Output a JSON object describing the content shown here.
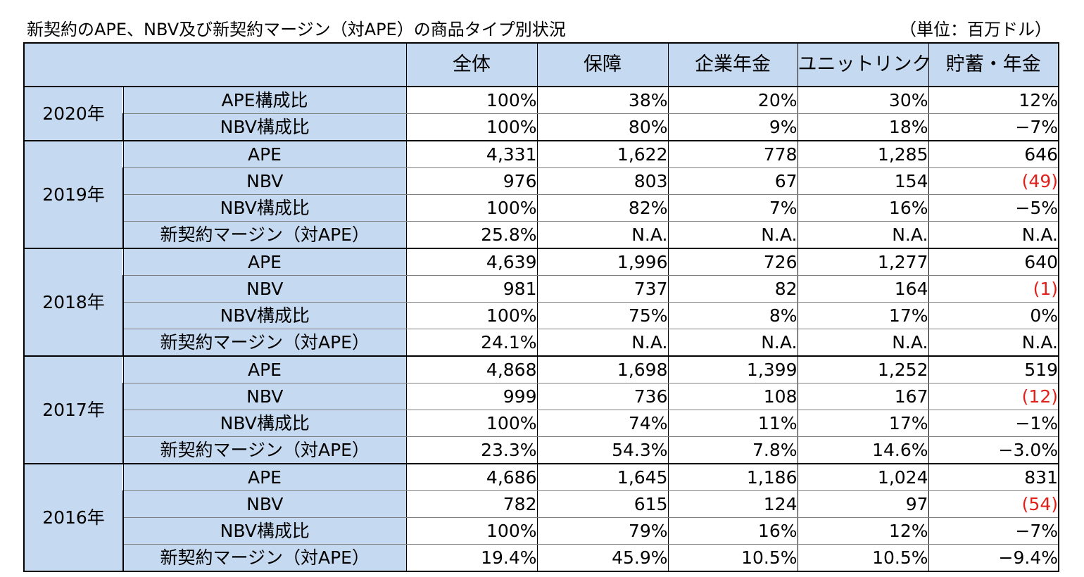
{
  "title": "新契約のAPE、NBV及び新契約マージン（対APE）の商品タイプ別状況",
  "unit": "（単位：百万ドル）",
  "columns": [
    "全体",
    "保障",
    "企業年金",
    "ユニットリンク",
    "貯蓄・年金"
  ],
  "groups": [
    {
      "year": "2020年",
      "rows": [
        {
          "label": "APE構成比",
          "values": [
            "100%",
            "38%",
            "20%",
            "30%",
            "12%"
          ],
          "neg": [
            false,
            false,
            false,
            false,
            false
          ]
        },
        {
          "label": "NBV構成比",
          "values": [
            "100%",
            "80%",
            "9%",
            "18%",
            "−7%"
          ],
          "neg": [
            false,
            false,
            false,
            false,
            false
          ]
        }
      ]
    },
    {
      "year": "2019年",
      "rows": [
        {
          "label": "APE",
          "values": [
            "4,331",
            "1,622",
            "778",
            "1,285",
            "646"
          ],
          "neg": [
            false,
            false,
            false,
            false,
            false
          ]
        },
        {
          "label": "NBV",
          "values": [
            "976",
            "803",
            "67",
            "154",
            "(49)"
          ],
          "neg": [
            false,
            false,
            false,
            false,
            true
          ]
        },
        {
          "label": "NBV構成比",
          "values": [
            "100%",
            "82%",
            "7%",
            "16%",
            "−5%"
          ],
          "neg": [
            false,
            false,
            false,
            false,
            false
          ]
        },
        {
          "label": "新契約マージン（対APE）",
          "values": [
            "25.8%",
            "N.A.",
            "N.A.",
            "N.A.",
            "N.A."
          ],
          "neg": [
            false,
            false,
            false,
            false,
            false
          ]
        }
      ]
    },
    {
      "year": "2018年",
      "rows": [
        {
          "label": "APE",
          "values": [
            "4,639",
            "1,996",
            "726",
            "1,277",
            "640"
          ],
          "neg": [
            false,
            false,
            false,
            false,
            false
          ]
        },
        {
          "label": "NBV",
          "values": [
            "981",
            "737",
            "82",
            "164",
            "(1)"
          ],
          "neg": [
            false,
            false,
            false,
            false,
            true
          ]
        },
        {
          "label": "NBV構成比",
          "values": [
            "100%",
            "75%",
            "8%",
            "17%",
            "0%"
          ],
          "neg": [
            false,
            false,
            false,
            false,
            false
          ]
        },
        {
          "label": "新契約マージン（対APE）",
          "values": [
            "24.1%",
            "N.A.",
            "N.A.",
            "N.A.",
            "N.A."
          ],
          "neg": [
            false,
            false,
            false,
            false,
            false
          ]
        }
      ]
    },
    {
      "year": "2017年",
      "rows": [
        {
          "label": "APE",
          "values": [
            "4,868",
            "1,698",
            "1,399",
            "1,252",
            "519"
          ],
          "neg": [
            false,
            false,
            false,
            false,
            false
          ]
        },
        {
          "label": "NBV",
          "values": [
            "999",
            "736",
            "108",
            "167",
            "(12)"
          ],
          "neg": [
            false,
            false,
            false,
            false,
            true
          ]
        },
        {
          "label": "NBV構成比",
          "values": [
            "100%",
            "74%",
            "11%",
            "17%",
            "−1%"
          ],
          "neg": [
            false,
            false,
            false,
            false,
            false
          ]
        },
        {
          "label": "新契約マージン（対APE）",
          "values": [
            "23.3%",
            "54.3%",
            "7.8%",
            "14.6%",
            "−3.0%"
          ],
          "neg": [
            false,
            false,
            false,
            false,
            false
          ]
        }
      ]
    },
    {
      "year": "2016年",
      "rows": [
        {
          "label": "APE",
          "values": [
            "4,686",
            "1,645",
            "1,186",
            "1,024",
            "831"
          ],
          "neg": [
            false,
            false,
            false,
            false,
            false
          ]
        },
        {
          "label": "NBV",
          "values": [
            "782",
            "615",
            "124",
            "97",
            "(54)"
          ],
          "neg": [
            false,
            false,
            false,
            false,
            true
          ]
        },
        {
          "label": "NBV構成比",
          "values": [
            "100%",
            "79%",
            "16%",
            "12%",
            "−7%"
          ],
          "neg": [
            false,
            false,
            false,
            false,
            false
          ]
        },
        {
          "label": "新契約マージン（対APE）",
          "values": [
            "19.4%",
            "45.9%",
            "10.5%",
            "10.5%",
            "−9.4%"
          ],
          "neg": [
            false,
            false,
            false,
            false,
            false
          ]
        }
      ]
    }
  ],
  "colors": {
    "header_bg": "#c5d9f1",
    "negative_text": "#e0211b",
    "border": "#000000"
  }
}
